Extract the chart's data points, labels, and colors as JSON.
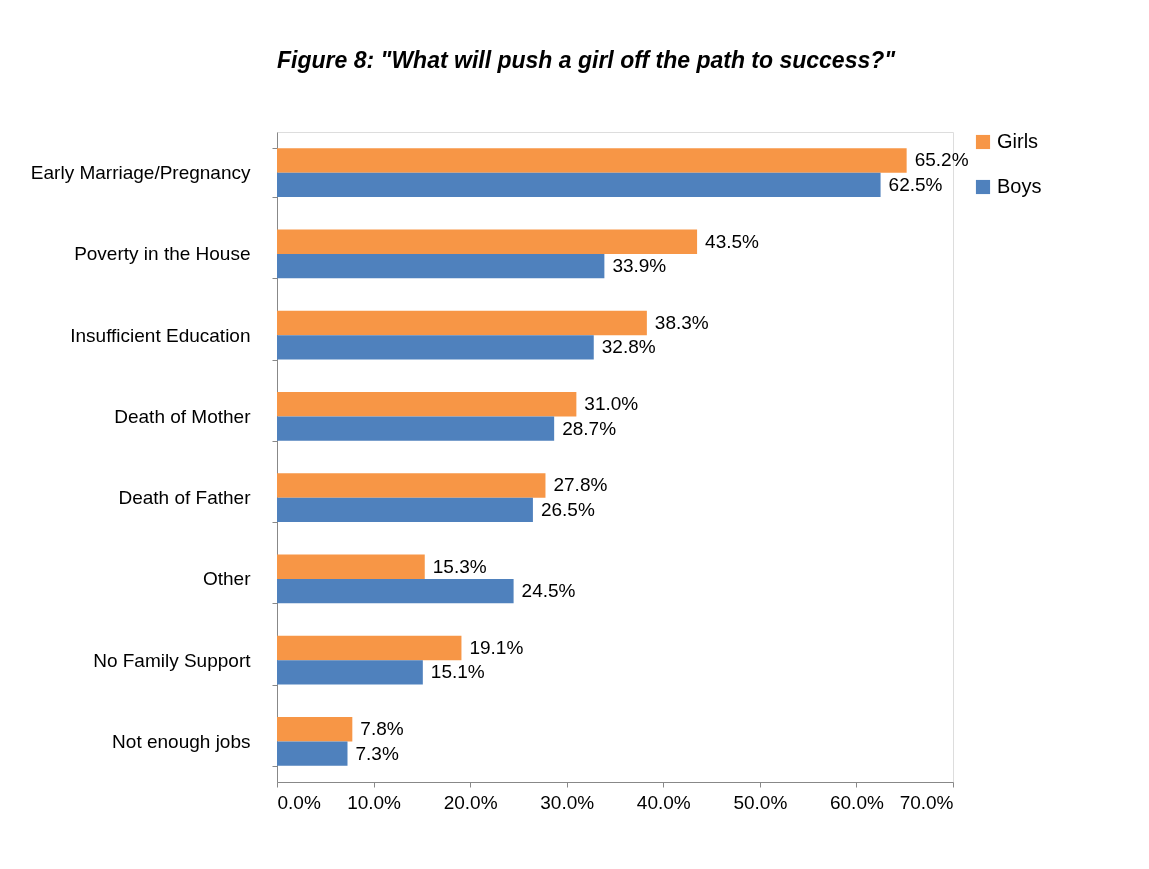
{
  "chart_data": {
    "type": "bar",
    "orientation": "horizontal",
    "title": "Figure 8: \"What will push a girl off the path to success?\"",
    "categories": [
      "Early Marriage/Pregnancy",
      "Poverty in the House",
      "Insufficient Education",
      "Death of Mother",
      "Death of Father",
      "Other",
      "No Family Support",
      "Not enough jobs"
    ],
    "series": [
      {
        "name": "Girls",
        "color": "#f79646",
        "values": [
          65.2,
          43.5,
          38.3,
          31.0,
          27.8,
          15.3,
          19.1,
          7.8
        ],
        "value_labels": [
          "65.2%",
          "43.5%",
          "38.3%",
          "31.0%",
          "27.8%",
          "15.3%",
          "19.1%",
          "7.8%"
        ]
      },
      {
        "name": "Boys",
        "color": "#4f81bd",
        "values": [
          62.5,
          33.9,
          32.8,
          28.7,
          26.5,
          24.5,
          15.1,
          7.3
        ],
        "value_labels": [
          "62.5%",
          "33.9%",
          "32.8%",
          "28.7%",
          "26.5%",
          "24.5%",
          "15.1%",
          "7.3%"
        ]
      }
    ],
    "xlim": [
      0,
      70
    ],
    "xticks": [
      {
        "value": 0,
        "label": "0.0%"
      },
      {
        "value": 10,
        "label": "10.0%"
      },
      {
        "value": 20,
        "label": "20.0%"
      },
      {
        "value": 30,
        "label": "30.0%"
      },
      {
        "value": 40,
        "label": "40.0%"
      },
      {
        "value": 50,
        "label": "50.0%"
      },
      {
        "value": 60,
        "label": "60.0%"
      },
      {
        "value": 70,
        "label": "70.0%"
      }
    ],
    "grid": false,
    "legend": "right"
  }
}
